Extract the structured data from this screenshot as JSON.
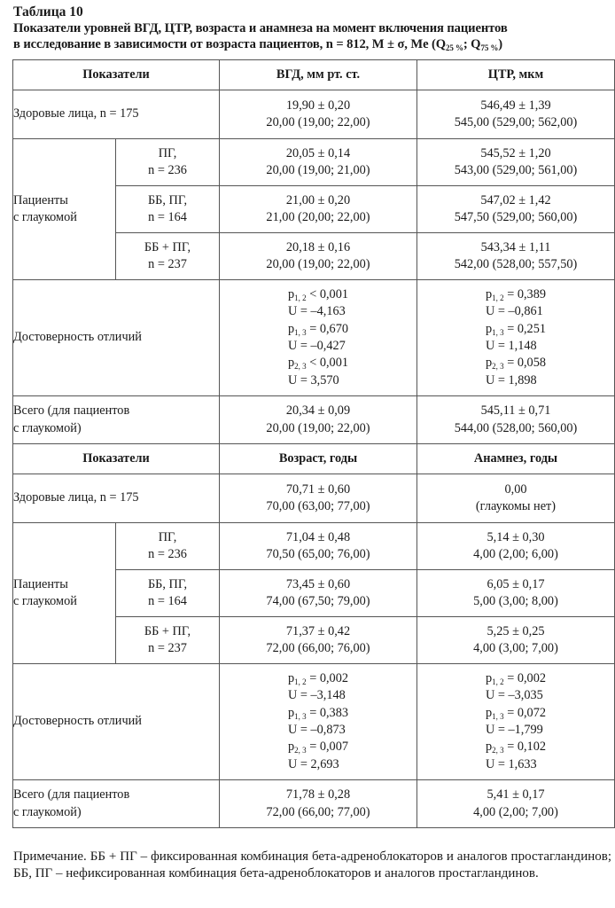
{
  "table_number": "Таблица 10",
  "caption": {
    "line1": "Показатели уровней ВГД, ЦТР, возраста и анамнеза на момент включения пациентов",
    "line2_main": "в исследование в зависимости от возраста пациентов, n = 812, M ± σ, Me (Q",
    "q1_sub": "25 %",
    "sep": "; Q",
    "q3_sub": "75 %",
    "close": ")"
  },
  "section1": {
    "headers": [
      "Показатели",
      "ВГД, мм рт. ст.",
      "ЦТР, мкм"
    ],
    "healthy": {
      "label": "Здоровые лица, n = 175",
      "col1": [
        "19,90 ± 0,20",
        "20,00 (19,00; 22,00)"
      ],
      "col2": [
        "546,49 ± 1,39",
        "545,00 (529,00; 562,00)"
      ]
    },
    "group_label": [
      "Пациенты",
      "с глаукомой"
    ],
    "subgroups": [
      {
        "label": [
          "ПГ,",
          "n = 236"
        ],
        "col1": [
          "20,05 ± 0,14",
          "20,00 (19,00; 21,00)"
        ],
        "col2": [
          "545,52 ± 1,20",
          "543,00 (529,00; 561,00)"
        ]
      },
      {
        "label": [
          "ББ, ПГ,",
          "n = 164"
        ],
        "col1": [
          "21,00 ± 0,20",
          "21,00 (20,00; 22,00)"
        ],
        "col2": [
          "547,02 ± 1,42",
          "547,50 (529,00; 560,00)"
        ]
      },
      {
        "label": [
          "ББ + ПГ,",
          "n = 237"
        ],
        "col1": [
          "20,18 ± 0,16",
          "20,00 (19,00; 22,00)"
        ],
        "col2": [
          "543,34 ± 1,11",
          "542,00 (528,00; 557,50)"
        ]
      }
    ],
    "significance": {
      "label": "Достоверность отличий",
      "col1": [
        {
          "p": "p",
          "sub": "1, 2",
          "rest": " < 0,001"
        },
        {
          "u": "U = –4,163"
        },
        {
          "p": "p",
          "sub": "1, 3",
          "rest": " = 0,670"
        },
        {
          "u": "U = –0,427"
        },
        {
          "p": "p",
          "sub": "2, 3",
          "rest": " < 0,001"
        },
        {
          "u": "U = 3,570"
        }
      ],
      "col2": [
        {
          "p": "p",
          "sub": "1, 2",
          "rest": " = 0,389"
        },
        {
          "u": "U = –0,861"
        },
        {
          "p": "p",
          "sub": "1, 3",
          "rest": " = 0,251"
        },
        {
          "u": "U = 1,148"
        },
        {
          "p": "p",
          "sub": "2, 3",
          "rest": " = 0,058"
        },
        {
          "u": "U = 1,898"
        }
      ]
    },
    "total": {
      "label": [
        "Всего (для пациентов",
        "с глаукомой)"
      ],
      "col1": [
        "20,34 ± 0,09",
        "20,00 (19,00; 22,00)"
      ],
      "col2": [
        "545,11 ± 0,71",
        "544,00 (528,00; 560,00)"
      ]
    }
  },
  "section2": {
    "headers": [
      "Показатели",
      "Возраст, годы",
      "Анамнез, годы"
    ],
    "healthy": {
      "label": "Здоровые лица, n = 175",
      "col1": [
        "70,71 ± 0,60",
        "70,00 (63,00; 77,00)"
      ],
      "col2": [
        "0,00",
        "(глаукомы нет)"
      ]
    },
    "group_label": [
      "Пациенты",
      "с глаукомой"
    ],
    "subgroups": [
      {
        "label": [
          "ПГ,",
          "n = 236"
        ],
        "col1": [
          "71,04 ± 0,48",
          "70,50 (65,00; 76,00)"
        ],
        "col2": [
          "5,14 ± 0,30",
          "4,00 (2,00; 6,00)"
        ]
      },
      {
        "label": [
          "ББ, ПГ,",
          "n = 164"
        ],
        "col1": [
          "73,45 ± 0,60",
          "74,00 (67,50; 79,00)"
        ],
        "col2": [
          "6,05 ± 0,17",
          "5,00 (3,00; 8,00)"
        ]
      },
      {
        "label": [
          "ББ + ПГ,",
          "n = 237"
        ],
        "col1": [
          "71,37 ± 0,42",
          "72,00 (66,00; 76,00)"
        ],
        "col2": [
          "5,25 ± 0,25",
          "4,00 (3,00; 7,00)"
        ]
      }
    ],
    "significance": {
      "label": "Достоверность отличий",
      "col1": [
        {
          "p": "p",
          "sub": "1, 2",
          "rest": " = 0,002"
        },
        {
          "u": "U = –3,148"
        },
        {
          "p": "p",
          "sub": "1, 3",
          "rest": " = 0,383"
        },
        {
          "u": "U = –0,873"
        },
        {
          "p": "p",
          "sub": "2, 3",
          "rest": " = 0,007"
        },
        {
          "u": "U = 2,693"
        }
      ],
      "col2": [
        {
          "p": "p",
          "sub": "1, 2",
          "rest": " = 0,002"
        },
        {
          "u": "U = –3,035"
        },
        {
          "p": "p",
          "sub": "1, 3",
          "rest": " = 0,072"
        },
        {
          "u": "U = –1,799"
        },
        {
          "p": "p",
          "sub": "2, 3",
          "rest": " = 0,102"
        },
        {
          "u": "U = 1,633"
        }
      ]
    },
    "total": {
      "label": [
        "Всего (для пациентов",
        "с глаукомой)"
      ],
      "col1": [
        "71,78 ± 0,28",
        "72,00 (66,00; 77,00)"
      ],
      "col2": [
        "5,41 ± 0,17",
        "4,00 (2,00; 7,00)"
      ]
    }
  },
  "note": "Примечание. ББ + ПГ – фиксированная комбинация бета-адреноблокаторов и аналогов простагландинов; ББ, ПГ – нефиксированная комбинация бета-адреноблокаторов и аналогов простагландинов."
}
